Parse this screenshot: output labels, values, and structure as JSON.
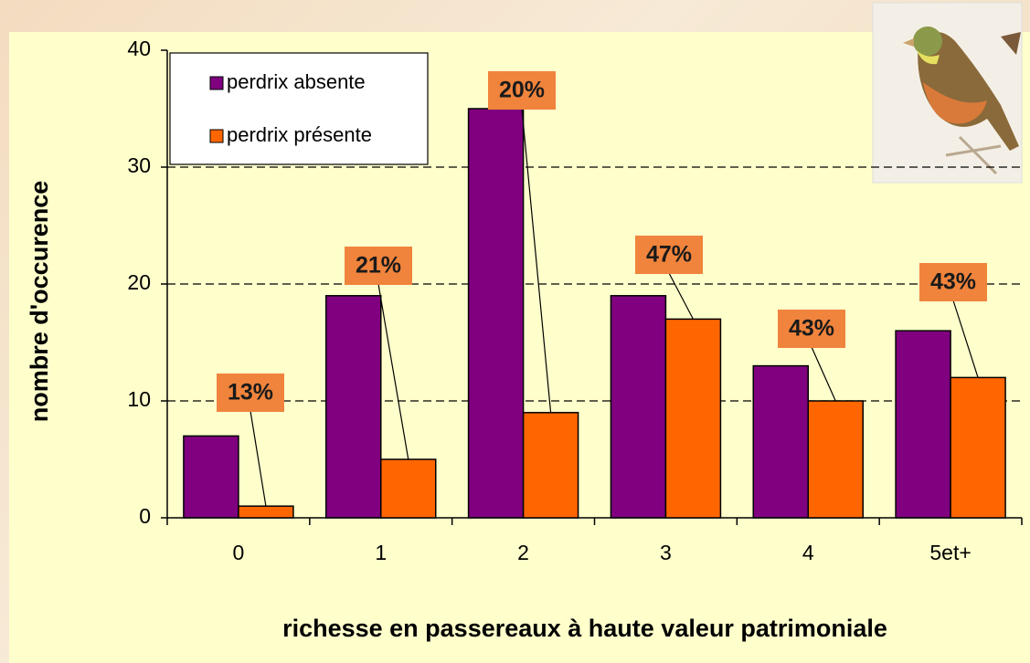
{
  "chart_data": {
    "type": "bar",
    "ylabel": "nombre d'occurence",
    "xlabel": "richesse en passereaux à haute valeur patrimoniale",
    "categories": [
      "0",
      "1",
      "2",
      "3",
      "4",
      "5et+"
    ],
    "series": [
      {
        "name": "perdrix absente",
        "color": "#800080",
        "values": [
          7,
          19,
          35,
          19,
          13,
          16
        ]
      },
      {
        "name": "perdrix présente",
        "color": "#ff6600",
        "values": [
          1,
          5,
          9,
          17,
          10,
          12
        ]
      }
    ],
    "annotations": [
      "13%",
      "21%",
      "20%",
      "47%",
      "43%",
      "43%"
    ],
    "ylim": [
      0,
      40
    ],
    "yticks": [
      0,
      10,
      20,
      30,
      40
    ],
    "grid": true,
    "legend": "upper left"
  }
}
